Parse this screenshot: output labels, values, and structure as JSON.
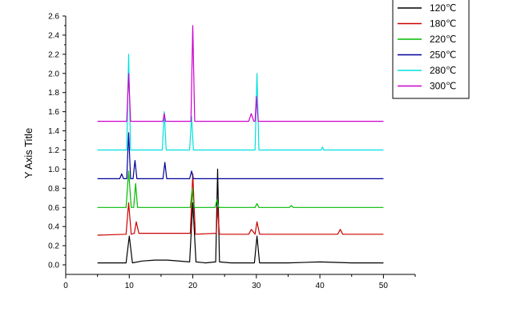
{
  "chart_data": {
    "type": "line",
    "title": "",
    "xlabel": "",
    "ylabel": "Y Axis Title",
    "xlim": [
      0,
      55
    ],
    "ylim": [
      -0.1,
      2.6
    ],
    "xticks": [
      "0",
      "10",
      "20",
      "30",
      "40",
      "50"
    ],
    "yticks": [
      "0.0",
      "0.2",
      "0.4",
      "0.6",
      "0.8",
      "1.0",
      "1.2",
      "1.4",
      "1.6",
      "1.8",
      "2.0",
      "2.2",
      "2.4",
      "2.6"
    ],
    "legend_position": "top-right",
    "grid": false,
    "series": [
      {
        "name": "120℃",
        "color": "#000000",
        "x": [
          5,
          9.5,
          10,
          10.5,
          12,
          14,
          16,
          19.5,
          20,
          20.5,
          22,
          23.6,
          23.9,
          24.2,
          26,
          29.7,
          30.1,
          30.5,
          35,
          40,
          45,
          50
        ],
        "y": [
          0.02,
          0.02,
          0.3,
          0.02,
          0.04,
          0.05,
          0.05,
          0.03,
          0.65,
          0.03,
          0.02,
          0.03,
          1.0,
          0.03,
          0.02,
          0.02,
          0.3,
          0.02,
          0.02,
          0.03,
          0.02,
          0.02
        ]
      },
      {
        "name": "180℃",
        "color": "#cc0000",
        "x": [
          5,
          9.5,
          9.9,
          10.3,
          10.8,
          11.1,
          11.5,
          14,
          16,
          19.6,
          20,
          20.4,
          23.7,
          23.9,
          24.2,
          28.8,
          29.2,
          29.8,
          30.1,
          30.5,
          35,
          42.8,
          43.2,
          43.6,
          50
        ],
        "y": [
          0.31,
          0.32,
          0.65,
          0.32,
          0.33,
          0.45,
          0.33,
          0.33,
          0.33,
          0.33,
          0.95,
          0.32,
          0.33,
          0.6,
          0.32,
          0.32,
          0.37,
          0.32,
          0.45,
          0.32,
          0.32,
          0.32,
          0.37,
          0.32,
          0.32
        ]
      },
      {
        "name": "220℃",
        "color": "#00bb00",
        "x": [
          5,
          9.5,
          9.9,
          10.3,
          10.7,
          11.0,
          11.3,
          19.6,
          19.9,
          20.2,
          23.5,
          23.8,
          24.1,
          29.8,
          30.1,
          30.4,
          35.2,
          35.5,
          35.8,
          50
        ],
        "y": [
          0.6,
          0.6,
          0.98,
          0.6,
          0.6,
          0.85,
          0.6,
          0.6,
          0.8,
          0.6,
          0.6,
          0.68,
          0.6,
          0.6,
          0.64,
          0.6,
          0.6,
          0.62,
          0.6,
          0.6
        ]
      },
      {
        "name": "250℃",
        "color": "#000099",
        "x": [
          5,
          8.5,
          8.8,
          9.1,
          9.6,
          9.9,
          10.2,
          10.6,
          10.9,
          11.2,
          15.3,
          15.6,
          15.9,
          19.5,
          19.8,
          20.1,
          50
        ],
        "y": [
          0.9,
          0.9,
          0.95,
          0.9,
          0.9,
          1.38,
          0.9,
          0.9,
          1.09,
          0.9,
          0.9,
          1.07,
          0.9,
          0.9,
          0.98,
          0.9,
          0.9
        ]
      },
      {
        "name": "280℃",
        "color": "#00e0e0",
        "x": [
          5,
          9.6,
          9.9,
          10.2,
          15.2,
          15.5,
          15.8,
          19.5,
          19.8,
          20.1,
          29.8,
          30.1,
          30.4,
          40.2,
          40.4,
          40.6,
          50
        ],
        "y": [
          1.2,
          1.2,
          2.2,
          1.2,
          1.2,
          1.6,
          1.2,
          1.2,
          1.55,
          1.2,
          1.2,
          2.0,
          1.2,
          1.2,
          1.23,
          1.2,
          1.2
        ]
      },
      {
        "name": "300℃",
        "color": "#cc00cc",
        "x": [
          5,
          9.6,
          9.9,
          10.2,
          15.3,
          15.5,
          15.7,
          19.7,
          20.0,
          20.3,
          28.8,
          29.2,
          29.6,
          29.8,
          30.0,
          30.3,
          50
        ],
        "y": [
          1.5,
          1.5,
          2.0,
          1.5,
          1.5,
          1.58,
          1.5,
          1.5,
          2.5,
          1.5,
          1.5,
          1.58,
          1.5,
          1.5,
          1.76,
          1.5,
          1.5
        ]
      }
    ]
  }
}
